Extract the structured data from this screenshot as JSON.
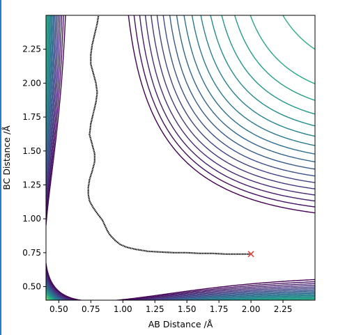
{
  "chart_data": {
    "type": "contour",
    "title": "",
    "xlabel": "AB Distance /Å",
    "ylabel": "BC Distance /Å",
    "xlim": [
      0.4,
      2.5
    ],
    "ylim": [
      0.4,
      2.5
    ],
    "xticks": [
      "0.50",
      "0.75",
      "1.00",
      "1.25",
      "1.50",
      "1.75",
      "2.00",
      "2.25"
    ],
    "yticks": [
      "0.50",
      "0.75",
      "1.00",
      "1.25",
      "1.50",
      "1.75",
      "2.00",
      "2.25"
    ],
    "colormap": [
      "#440154",
      "#472d7b",
      "#3b528b",
      "#2c728e",
      "#21918c",
      "#28ae80",
      "#5ec962",
      "#addc30",
      "#fde725"
    ],
    "contour_levels": [
      -4.1,
      -3.9,
      -3.7,
      -3.5,
      -3.3,
      -3.1,
      -2.9,
      -2.7,
      -2.5,
      -2.3,
      -2.1,
      -1.9,
      -1.7,
      -1.5,
      -1.3,
      -1.1,
      -0.8,
      -0.5,
      -0.2,
      0.2,
      0.6,
      1.0,
      1.5,
      2.0,
      2.6,
      3.2
    ],
    "trajectory": {
      "color": "#000000",
      "points": [
        [
          2.0,
          0.74
        ],
        [
          1.9,
          0.74
        ],
        [
          1.8,
          0.74
        ],
        [
          1.7,
          0.745
        ],
        [
          1.6,
          0.745
        ],
        [
          1.5,
          0.75
        ],
        [
          1.4,
          0.75
        ],
        [
          1.3,
          0.755
        ],
        [
          1.2,
          0.76
        ],
        [
          1.1,
          0.775
        ],
        [
          1.03,
          0.79
        ],
        [
          0.98,
          0.81
        ],
        [
          0.94,
          0.84
        ],
        [
          0.9,
          0.88
        ],
        [
          0.88,
          0.91
        ],
        [
          0.86,
          0.95
        ],
        [
          0.84,
          0.99
        ],
        [
          0.8,
          1.04
        ],
        [
          0.77,
          1.08
        ],
        [
          0.74,
          1.13
        ],
        [
          0.73,
          1.18
        ],
        [
          0.73,
          1.23
        ],
        [
          0.74,
          1.29
        ],
        [
          0.76,
          1.35
        ],
        [
          0.78,
          1.42
        ],
        [
          0.78,
          1.48
        ],
        [
          0.76,
          1.55
        ],
        [
          0.74,
          1.62
        ],
        [
          0.75,
          1.7
        ],
        [
          0.77,
          1.78
        ],
        [
          0.79,
          1.86
        ],
        [
          0.8,
          1.93
        ],
        [
          0.79,
          2.0
        ],
        [
          0.77,
          2.07
        ],
        [
          0.75,
          2.14
        ],
        [
          0.75,
          2.21
        ],
        [
          0.76,
          2.28
        ],
        [
          0.78,
          2.36
        ],
        [
          0.8,
          2.44
        ],
        [
          0.81,
          2.5
        ]
      ]
    },
    "marker": {
      "x": 2.0,
      "y": 0.74,
      "symbol": "x",
      "color": "#e8312c"
    }
  }
}
